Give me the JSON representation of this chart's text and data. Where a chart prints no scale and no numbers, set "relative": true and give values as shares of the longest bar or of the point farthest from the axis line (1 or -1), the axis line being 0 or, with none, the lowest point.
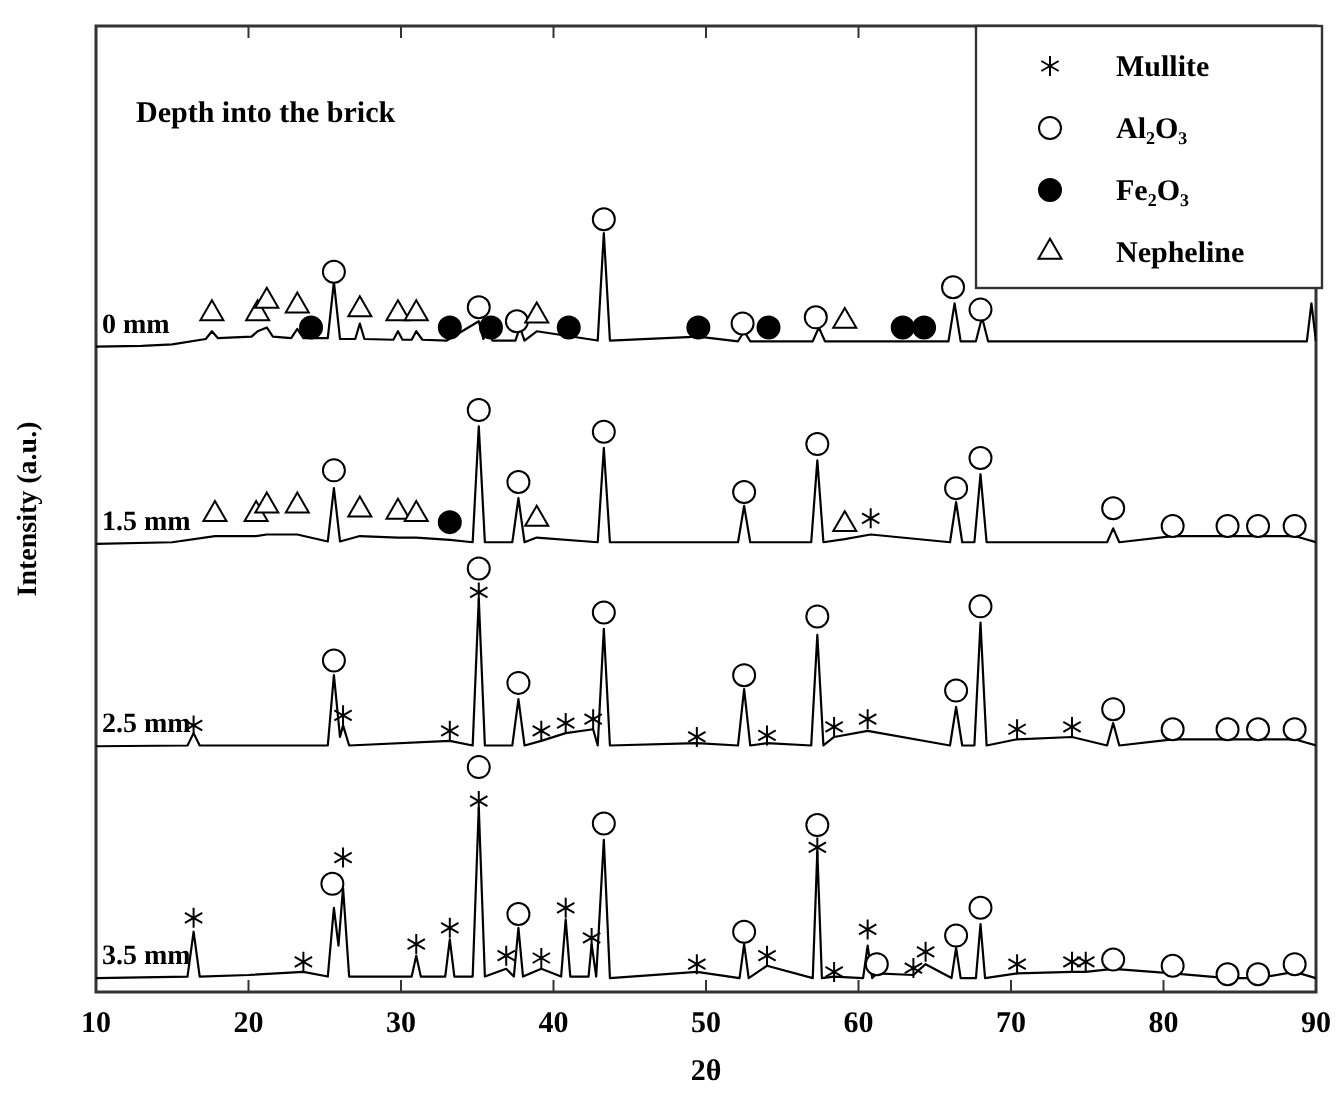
{
  "chart_data": {
    "type": "line",
    "relative": true,
    "xlabel": "2θ",
    "ylabel": "Intensity (a.u.)",
    "annotations": [
      "Depth into the brick"
    ],
    "xlim": [
      10,
      90
    ],
    "xticks": [
      10,
      20,
      30,
      40,
      50,
      60,
      70,
      80,
      90
    ],
    "legend": "top right",
    "marker": "none",
    "line_style": "solid",
    "grid": false,
    "series": [
      {
        "name": "0 mm",
        "color": "#000000",
        "x": [
          10,
          13,
          15,
          17.2,
          17.6,
          18,
          20.2,
          20.6,
          21.2,
          21.6,
          22.8,
          23.2,
          23.6,
          25.2,
          25.6,
          26,
          27,
          27.3,
          27.6,
          29.5,
          29.8,
          30.1,
          30.7,
          31,
          31.4,
          33,
          35.1,
          35.4,
          35.7,
          36,
          37.5,
          37.8,
          38.1,
          38.9,
          42.9,
          43.3,
          43.7,
          49.5,
          52.1,
          52.5,
          52.9,
          57,
          57.4,
          57.8,
          65.9,
          66.3,
          66.7,
          67.7,
          68.1,
          68.5,
          75,
          89.4,
          89.7,
          90
        ],
        "values": [
          0.835,
          0.836,
          0.838,
          0.845,
          0.855,
          0.846,
          0.848,
          0.855,
          0.86,
          0.848,
          0.846,
          0.858,
          0.846,
          0.846,
          0.919,
          0.845,
          0.845,
          0.865,
          0.845,
          0.844,
          0.855,
          0.844,
          0.844,
          0.855,
          0.844,
          0.843,
          0.868,
          0.845,
          0.855,
          0.843,
          0.843,
          0.86,
          0.843,
          0.855,
          0.843,
          0.982,
          0.843,
          0.848,
          0.842,
          0.855,
          0.842,
          0.842,
          0.86,
          0.842,
          0.842,
          0.891,
          0.842,
          0.842,
          0.873,
          0.842,
          0.842,
          0.842,
          0.891,
          0.842
        ]
      },
      {
        "name": "1.5 mm",
        "color": "#000000",
        "x": [
          10,
          15,
          17.8,
          20.5,
          21.2,
          23.2,
          25.2,
          25.6,
          26,
          27.3,
          29.8,
          31,
          33.2,
          34.7,
          35.1,
          35.5,
          37.3,
          37.7,
          38.1,
          38.9,
          42.9,
          43.3,
          43.7,
          52.1,
          52.5,
          52.9,
          56.9,
          57.3,
          57.7,
          59.1,
          60.8,
          66,
          66.4,
          66.8,
          67.6,
          68,
          68.4,
          76.3,
          76.7,
          77.1,
          80.6,
          84.2,
          86.2,
          88.6,
          90
        ],
        "values": [
          0.58,
          0.582,
          0.59,
          0.59,
          0.592,
          0.592,
          0.583,
          0.652,
          0.583,
          0.59,
          0.588,
          0.588,
          0.585,
          0.582,
          0.732,
          0.582,
          0.582,
          0.639,
          0.582,
          0.588,
          0.582,
          0.704,
          0.582,
          0.582,
          0.629,
          0.582,
          0.582,
          0.688,
          0.582,
          0.586,
          0.592,
          0.582,
          0.634,
          0.582,
          0.582,
          0.67,
          0.582,
          0.582,
          0.6,
          0.582,
          0.59,
          0.59,
          0.59,
          0.59,
          0.582
        ]
      },
      {
        "name": "2.5 mm",
        "color": "#000000",
        "x": [
          10,
          16,
          16.4,
          16.8,
          25.2,
          25.6,
          26,
          26.2,
          26.6,
          33.2,
          34.7,
          35.1,
          35.5,
          37.3,
          37.7,
          38.1,
          39.2,
          40.8,
          42.6,
          42.9,
          43.3,
          43.7,
          49.4,
          52.1,
          52.5,
          52.9,
          54,
          56.9,
          57.3,
          57.7,
          58.4,
          60.6,
          66,
          66.4,
          66.8,
          67.6,
          68,
          68.4,
          70.4,
          74,
          76.3,
          76.7,
          77.1,
          80.6,
          84.2,
          86.2,
          88.6,
          90
        ],
        "values": [
          0.318,
          0.319,
          0.335,
          0.319,
          0.319,
          0.41,
          0.33,
          0.345,
          0.319,
          0.325,
          0.319,
          0.509,
          0.319,
          0.319,
          0.379,
          0.319,
          0.325,
          0.335,
          0.34,
          0.319,
          0.47,
          0.319,
          0.322,
          0.319,
          0.392,
          0.319,
          0.322,
          0.319,
          0.462,
          0.319,
          0.33,
          0.338,
          0.319,
          0.369,
          0.319,
          0.319,
          0.478,
          0.319,
          0.327,
          0.33,
          0.319,
          0.348,
          0.319,
          0.327,
          0.327,
          0.327,
          0.327,
          0.319
        ]
      },
      {
        "name": "3.5 mm",
        "color": "#000000",
        "x": [
          10,
          16,
          16.4,
          16.8,
          20,
          23.6,
          25.2,
          25.6,
          25.9,
          26.2,
          26.6,
          30.7,
          31,
          31.3,
          32.9,
          33.2,
          33.5,
          34.7,
          35.1,
          35.5,
          36.9,
          37.4,
          37.7,
          38,
          39.2,
          40.5,
          40.8,
          41.1,
          42.3,
          42.5,
          42.8,
          43.3,
          43.7,
          49.4,
          52.2,
          52.5,
          52.8,
          54,
          57,
          57.3,
          57.6,
          58.4,
          60.3,
          60.6,
          60.9,
          61.2,
          63.6,
          64.4,
          66.1,
          66.4,
          66.7,
          67.7,
          68,
          68.3,
          70.4,
          74,
          74.9,
          76.7,
          80.6,
          84.2,
          86.2,
          88.6,
          90
        ],
        "values": [
          0.018,
          0.02,
          0.078,
          0.02,
          0.022,
          0.026,
          0.02,
          0.109,
          0.06,
          0.135,
          0.02,
          0.02,
          0.047,
          0.02,
          0.02,
          0.068,
          0.02,
          0.02,
          0.239,
          0.02,
          0.03,
          0.02,
          0.083,
          0.02,
          0.03,
          0.02,
          0.094,
          0.02,
          0.02,
          0.062,
          0.02,
          0.197,
          0.018,
          0.026,
          0.018,
          0.062,
          0.018,
          0.034,
          0.018,
          0.182,
          0.018,
          0.02,
          0.018,
          0.06,
          0.018,
          0.024,
          0.022,
          0.036,
          0.018,
          0.057,
          0.018,
          0.018,
          0.088,
          0.018,
          0.024,
          0.026,
          0.026,
          0.03,
          0.024,
          0.018,
          0.018,
          0.026,
          0.018
        ]
      },
      {
        "name": "Mullite",
        "type": "scatter",
        "marker": "cross",
        "color": "#000000",
        "x": [
          60.8,
          16.4,
          26.2,
          33.2,
          35.1,
          39.2,
          40.8,
          42.6,
          49.4,
          54,
          58.4,
          60.6,
          70.4,
          74,
          16.4,
          23.6,
          26.2,
          31,
          33.2,
          35.1,
          36.9,
          39.2,
          40.8,
          42.5,
          49.4,
          54,
          57.3,
          58.4,
          60.6,
          63.6,
          64.4,
          70.4,
          74,
          74.9
        ],
        "values": [
          0.613,
          0.345,
          0.358,
          0.338,
          0.517,
          0.338,
          0.348,
          0.353,
          0.33,
          0.332,
          0.343,
          0.353,
          0.34,
          0.343,
          0.096,
          0.039,
          0.174,
          0.062,
          0.083,
          0.247,
          0.047,
          0.044,
          0.109,
          0.07,
          0.036,
          0.047,
          0.187,
          0.026,
          0.081,
          0.031,
          0.052,
          0.036,
          0.039,
          0.039
        ]
      },
      {
        "name": "Al₂O₃",
        "type": "scatter",
        "marker": "circle",
        "color": "#ffffff",
        "x": [
          25.6,
          35.1,
          37.6,
          43.3,
          52.4,
          57.2,
          66.2,
          68,
          25.6,
          35.1,
          37.7,
          43.3,
          52.5,
          57.3,
          66.4,
          68,
          76.7,
          80.6,
          84.2,
          86.2,
          88.6,
          25.6,
          35.1,
          37.7,
          43.3,
          52.5,
          57.3,
          66.4,
          68,
          76.7,
          80.6,
          84.2,
          86.2,
          88.6,
          25.5,
          35.1,
          37.7,
          43.3,
          52.5,
          57.3,
          61.2,
          66.4,
          68,
          76.7,
          80.6,
          84.2,
          86.2,
          88.6
        ],
        "values": [
          0.932,
          0.886,
          0.868,
          1,
          0.865,
          0.873,
          0.912,
          0.883,
          0.675,
          0.753,
          0.66,
          0.725,
          0.647,
          0.709,
          0.652,
          0.691,
          0.626,
          0.603,
          0.603,
          0.603,
          0.603,
          0.429,
          0.548,
          0.4,
          0.491,
          0.41,
          0.486,
          0.39,
          0.499,
          0.366,
          0.34,
          0.34,
          0.34,
          0.34,
          0.14,
          0.291,
          0.101,
          0.218,
          0.078,
          0.216,
          0.036,
          0.073,
          0.109,
          0.042,
          0.034,
          0.023,
          0.023,
          0.036
        ]
      },
      {
        "name": "Fe₂O₃",
        "type": "scatter",
        "marker": "circle",
        "color": "#000000",
        "x": [
          24.1,
          33.2,
          35.9,
          41,
          49.5,
          54.1,
          62.9,
          64.3,
          33.2
        ],
        "values": [
          0.86,
          0.86,
          0.86,
          0.86,
          0.86,
          0.86,
          0.86,
          0.86,
          0.608
        ]
      },
      {
        "name": "Nepheline",
        "type": "scatter",
        "marker": "triangle",
        "color": "#ffffff",
        "x": [
          17.6,
          20.6,
          21.2,
          23.2,
          27.3,
          29.8,
          31,
          38.9,
          59.1,
          17.8,
          20.5,
          21.2,
          23.2,
          27.3,
          29.8,
          31,
          38.9,
          59.1
        ],
        "values": [
          0.878,
          0.878,
          0.894,
          0.888,
          0.883,
          0.878,
          0.878,
          0.875,
          0.868,
          0.618,
          0.618,
          0.629,
          0.629,
          0.624,
          0.621,
          0.618,
          0.612,
          0.605
        ]
      }
    ]
  }
}
